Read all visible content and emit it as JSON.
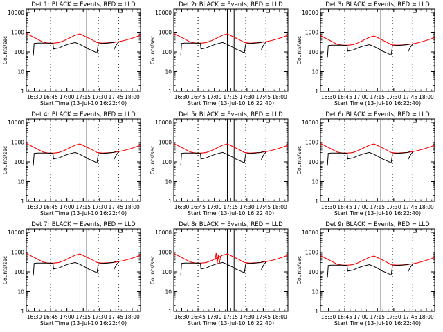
{
  "figure": {
    "type": "line",
    "panels": [
      {
        "title": "Det 1r BLACK = Events, RED = LLD",
        "variant": 0
      },
      {
        "title": "Det 2r BLACK = Events, RED = LLD",
        "variant": 0
      },
      {
        "title": "Det 3r BLACK = Events, RED = LLD",
        "variant": 2
      },
      {
        "title": "Det 4r BLACK = Events, RED = LLD",
        "variant": 0
      },
      {
        "title": "Det 5r BLACK = Events, RED = LLD",
        "variant": 0
      },
      {
        "title": "Det 6r BLACK = Events, RED = LLD",
        "variant": 0
      },
      {
        "title": "Det 7r BLACK = Events, RED = LLD",
        "variant": 0
      },
      {
        "title": "Det 8r BLACK = Events, RED = LLD",
        "variant": 8
      },
      {
        "title": "Det 9r BLACK = Events, RED = LLD",
        "variant": 2
      }
    ],
    "xlabel": "Start Time (13-Jul-10 16:22:40)",
    "ylabel": "Counts/sec",
    "xtick_labels": [
      "16:30",
      "16:45",
      "17:00",
      "17:15",
      "17:30",
      "17:45",
      "18:00"
    ],
    "ytick_labels": [
      "1",
      "10",
      "100",
      "1000",
      "10000"
    ],
    "colors": {
      "events": "#000000",
      "lld": "#ff0000",
      "axes": "#000000",
      "background": "#ffffff"
    }
  },
  "chart_data": {
    "type": "line",
    "scale_y": "log",
    "x_units": "minutes since 16:22:40",
    "xlim": [
      0,
      105
    ],
    "ylim": [
      1,
      15000
    ],
    "xticks": [
      7.33,
      22.33,
      37.33,
      52.33,
      67.33,
      82.33,
      97.33
    ],
    "yticks": [
      1,
      10,
      100,
      1000,
      10000
    ],
    "dotted_vlines": [
      22.33,
      66.2,
      84.8
    ],
    "solid_vlines": [
      49.3,
      55.5
    ],
    "series": [
      {
        "name": "LLD",
        "color": "#ff0000",
        "x": [
          0,
          5,
          10,
          15,
          20,
          25,
          30,
          35,
          40,
          45,
          49.3,
          55.5,
          60,
          65,
          70,
          75,
          80,
          85,
          90,
          95,
          100,
          105
        ],
        "y": [
          850,
          620,
          450,
          320,
          280,
          280,
          300,
          380,
          520,
          700,
          820,
          560,
          420,
          300,
          280,
          290,
          300,
          330,
          380,
          450,
          550,
          700
        ]
      },
      {
        "name": "Events",
        "color": "#000000",
        "segments": [
          {
            "x": [
              6.4,
              7.2,
              10,
              15,
              20,
              24.5,
              25,
              30,
              35,
              40,
              45,
              49.3,
              55.5,
              57,
              60,
              65,
              66.2,
              70,
              75,
              80,
              82.5
            ],
            "y": [
              65,
              270,
              280,
              280,
              280,
              275,
              140,
              160,
              210,
              260,
              300,
              240,
              160,
              140,
              120,
              90,
              260,
              270,
              280,
              300,
              330
            ]
          },
          {
            "x": [
              80.5,
              82.6,
              85
            ],
            "y": [
              130,
              220,
              330
            ]
          }
        ]
      }
    ]
  }
}
